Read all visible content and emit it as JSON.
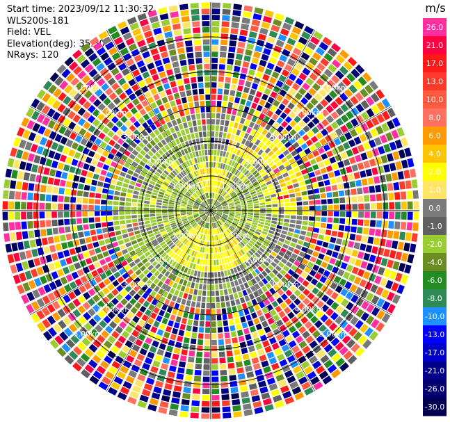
{
  "info": {
    "start_time": "Start time: 2023/09/12 11:30:32",
    "instrument": "WLS200s-181",
    "field": "Field: VEL",
    "elevation": "Elevation(deg): 35.30",
    "nrays": "NRays: 120"
  },
  "colorbar": {
    "unit": "m/s",
    "bins": [
      {
        "label": "26.0",
        "color": "#ff2fa0"
      },
      {
        "label": "21.0",
        "color": "#ff0040"
      },
      {
        "label": "17.0",
        "color": "#ff1a1a"
      },
      {
        "label": "13.0",
        "color": "#ff3a2a"
      },
      {
        "label": "10.0",
        "color": "#ff5a40"
      },
      {
        "label": "8.0",
        "color": "#ff7060"
      },
      {
        "label": "6.0",
        "color": "#ff9900"
      },
      {
        "label": "4.0",
        "color": "#ffc400"
      },
      {
        "label": "2.0",
        "color": "#ffff00"
      },
      {
        "label": "1.0",
        "color": "#ffe566"
      },
      {
        "label": "0.0",
        "color": "#7a7a7a"
      },
      {
        "label": "-1.0",
        "color": "#606060"
      },
      {
        "label": "-2.0",
        "color": "#9acd32"
      },
      {
        "label": "-4.0",
        "color": "#6b8e23"
      },
      {
        "label": "-6.0",
        "color": "#228b22"
      },
      {
        "label": "-8.0",
        "color": "#2e8b57"
      },
      {
        "label": "-10.0",
        "color": "#1e90ff"
      },
      {
        "label": "-13.0",
        "color": "#0000ff"
      },
      {
        "label": "-17.0",
        "color": "#0000cd"
      },
      {
        "label": "-21.0",
        "color": "#00008b"
      },
      {
        "label": "-26.0",
        "color": "#000070"
      },
      {
        "label": "-30.0",
        "color": "#000050"
      }
    ]
  },
  "chart_data": {
    "type": "heatmap",
    "projection": "polar PPI",
    "field": "VEL",
    "units": "m/s",
    "nrays": 120,
    "range_rings_km": [
      1,
      2,
      3,
      4,
      5
    ],
    "range_ring_labels": [
      "1.00km",
      "2.00km",
      "3.00km",
      "4.00km",
      "5.00km"
    ],
    "color_levels": [
      26.0,
      21.0,
      17.0,
      13.0,
      10.0,
      8.0,
      6.0,
      4.0,
      2.0,
      1.0,
      0.0,
      -1.0,
      -2.0,
      -4.0,
      -6.0,
      -8.0,
      -10.0,
      -13.0,
      -17.0,
      -21.0,
      -26.0,
      -30.0
    ],
    "regions": [
      {
        "range_km": [
          0,
          0.5
        ],
        "description_values": "mixed near-zero / positive"
      },
      {
        "range_km": [
          0.5,
          1.7
        ],
        "dominant_values_ms": [
          2.0,
          -2.0,
          0.0
        ]
      },
      {
        "range_km": [
          1.7,
          2.7
        ],
        "dominant_values_ms": [
          -2.0,
          0.0,
          2.0
        ]
      },
      {
        "range_km": [
          2.7,
          6.0
        ],
        "dominant_values_ms": "noise: all levels -30.0 to 26.0"
      }
    ]
  }
}
